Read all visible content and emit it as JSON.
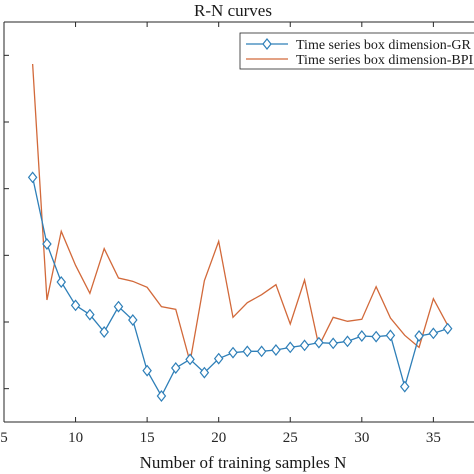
{
  "chart_data": {
    "type": "line",
    "title": "R-N curves",
    "xlabel": "Number of training samples  N",
    "ylabel": "",
    "xlim": [
      5,
      37
    ],
    "ylim": [
      0.45,
      1.05
    ],
    "x_ticks": [
      5,
      10,
      15,
      20,
      25,
      30,
      35
    ],
    "x_tick_labels": [
      "5",
      "10",
      "15",
      "20",
      "25",
      "30",
      "35"
    ],
    "grid": false,
    "legend_position": "top-right",
    "x": [
      7,
      8,
      9,
      10,
      11,
      12,
      13,
      14,
      15,
      16,
      17,
      18,
      19,
      20,
      21,
      22,
      23,
      24,
      25,
      26,
      27,
      28,
      29,
      30,
      31,
      32,
      33,
      34,
      35,
      36
    ],
    "series": [
      {
        "name": "Time series box dimension-GR",
        "color": "#2e7fb8",
        "marker": "diamond",
        "values": [
          0.817,
          0.717,
          0.66,
          0.625,
          0.611,
          0.585,
          0.623,
          0.603,
          0.527,
          0.489,
          0.531,
          0.544,
          0.524,
          0.545,
          0.554,
          0.556,
          0.556,
          0.558,
          0.562,
          0.565,
          0.569,
          0.568,
          0.571,
          0.579,
          0.578,
          0.58,
          0.503,
          0.579,
          0.583,
          0.59
        ]
      },
      {
        "name": "Time series box dimension-BPI",
        "color": "#d2693a",
        "marker": "none",
        "values": [
          0.987,
          0.633,
          0.736,
          0.685,
          0.643,
          0.71,
          0.666,
          0.661,
          0.652,
          0.623,
          0.619,
          0.54,
          0.662,
          0.721,
          0.607,
          0.629,
          0.641,
          0.656,
          0.597,
          0.663,
          0.564,
          0.607,
          0.601,
          0.604,
          0.653,
          0.606,
          0.58,
          0.562,
          0.635,
          0.595
        ]
      }
    ]
  }
}
